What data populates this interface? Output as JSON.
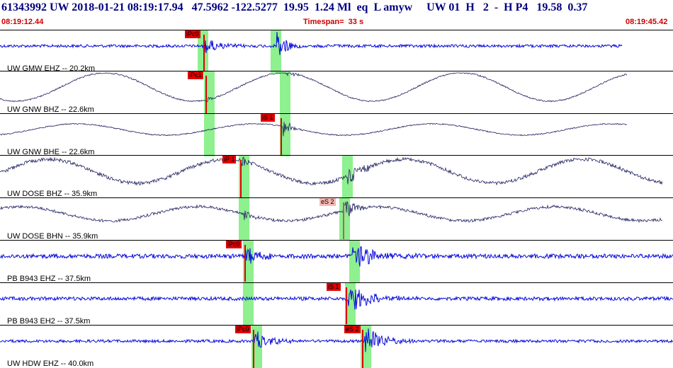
{
  "header": {
    "title": "61343992 UW 2018-01-21 08:19:17.94   47.5962 -122.5277  19.95  1.24 Ml  eq  L amyw     UW 01  H   2  -  H P4   19.58  0.37",
    "start_time": "08:19:12.44",
    "timespan": "Timespan=  33 s",
    "end_time": "08:19:45.42"
  },
  "colors": {
    "trace_blue": "#0a0adc",
    "trace_dark": "#202060",
    "highlight": "#8ef08e",
    "pick_red": "#e00000",
    "pick_pink": "#f4b8b0"
  },
  "traces": [
    {
      "label": "UW GMW EHZ -- 20.2km",
      "style": "blue",
      "picks": [
        {
          "text": "iPc0",
          "color": "red"
        }
      ]
    },
    {
      "label": "UW GNW BHZ -- 22.6km",
      "style": "dark",
      "picks": [
        {
          "text": "iPc1",
          "color": "red"
        }
      ]
    },
    {
      "label": "UW GNW BHE -- 22.6km",
      "style": "dark",
      "picks": [
        {
          "text": "iS 1",
          "color": "red"
        }
      ]
    },
    {
      "label": "UW DOSE BHZ -- 35.9km",
      "style": "dark",
      "picks": [
        {
          "text": "iP 1",
          "color": "red"
        }
      ]
    },
    {
      "label": "UW DOSE BHN -- 35.9km",
      "style": "dark",
      "picks": [
        {
          "text": "eS 2",
          "color": "pink"
        }
      ]
    },
    {
      "label": "PB B943 EHZ -- 37.5km",
      "style": "blue",
      "picks": [
        {
          "text": "iPc0",
          "color": "red"
        }
      ]
    },
    {
      "label": "PB B943 EH2 -- 37.5km",
      "style": "blue",
      "picks": [
        {
          "text": "iS 1",
          "color": "red"
        }
      ]
    },
    {
      "label": "UW HDW EHZ -- 40.0km",
      "style": "blue",
      "picks": [
        {
          "text": "iPc0",
          "color": "red"
        },
        {
          "text": "eS 2",
          "color": "red"
        }
      ]
    }
  ]
}
